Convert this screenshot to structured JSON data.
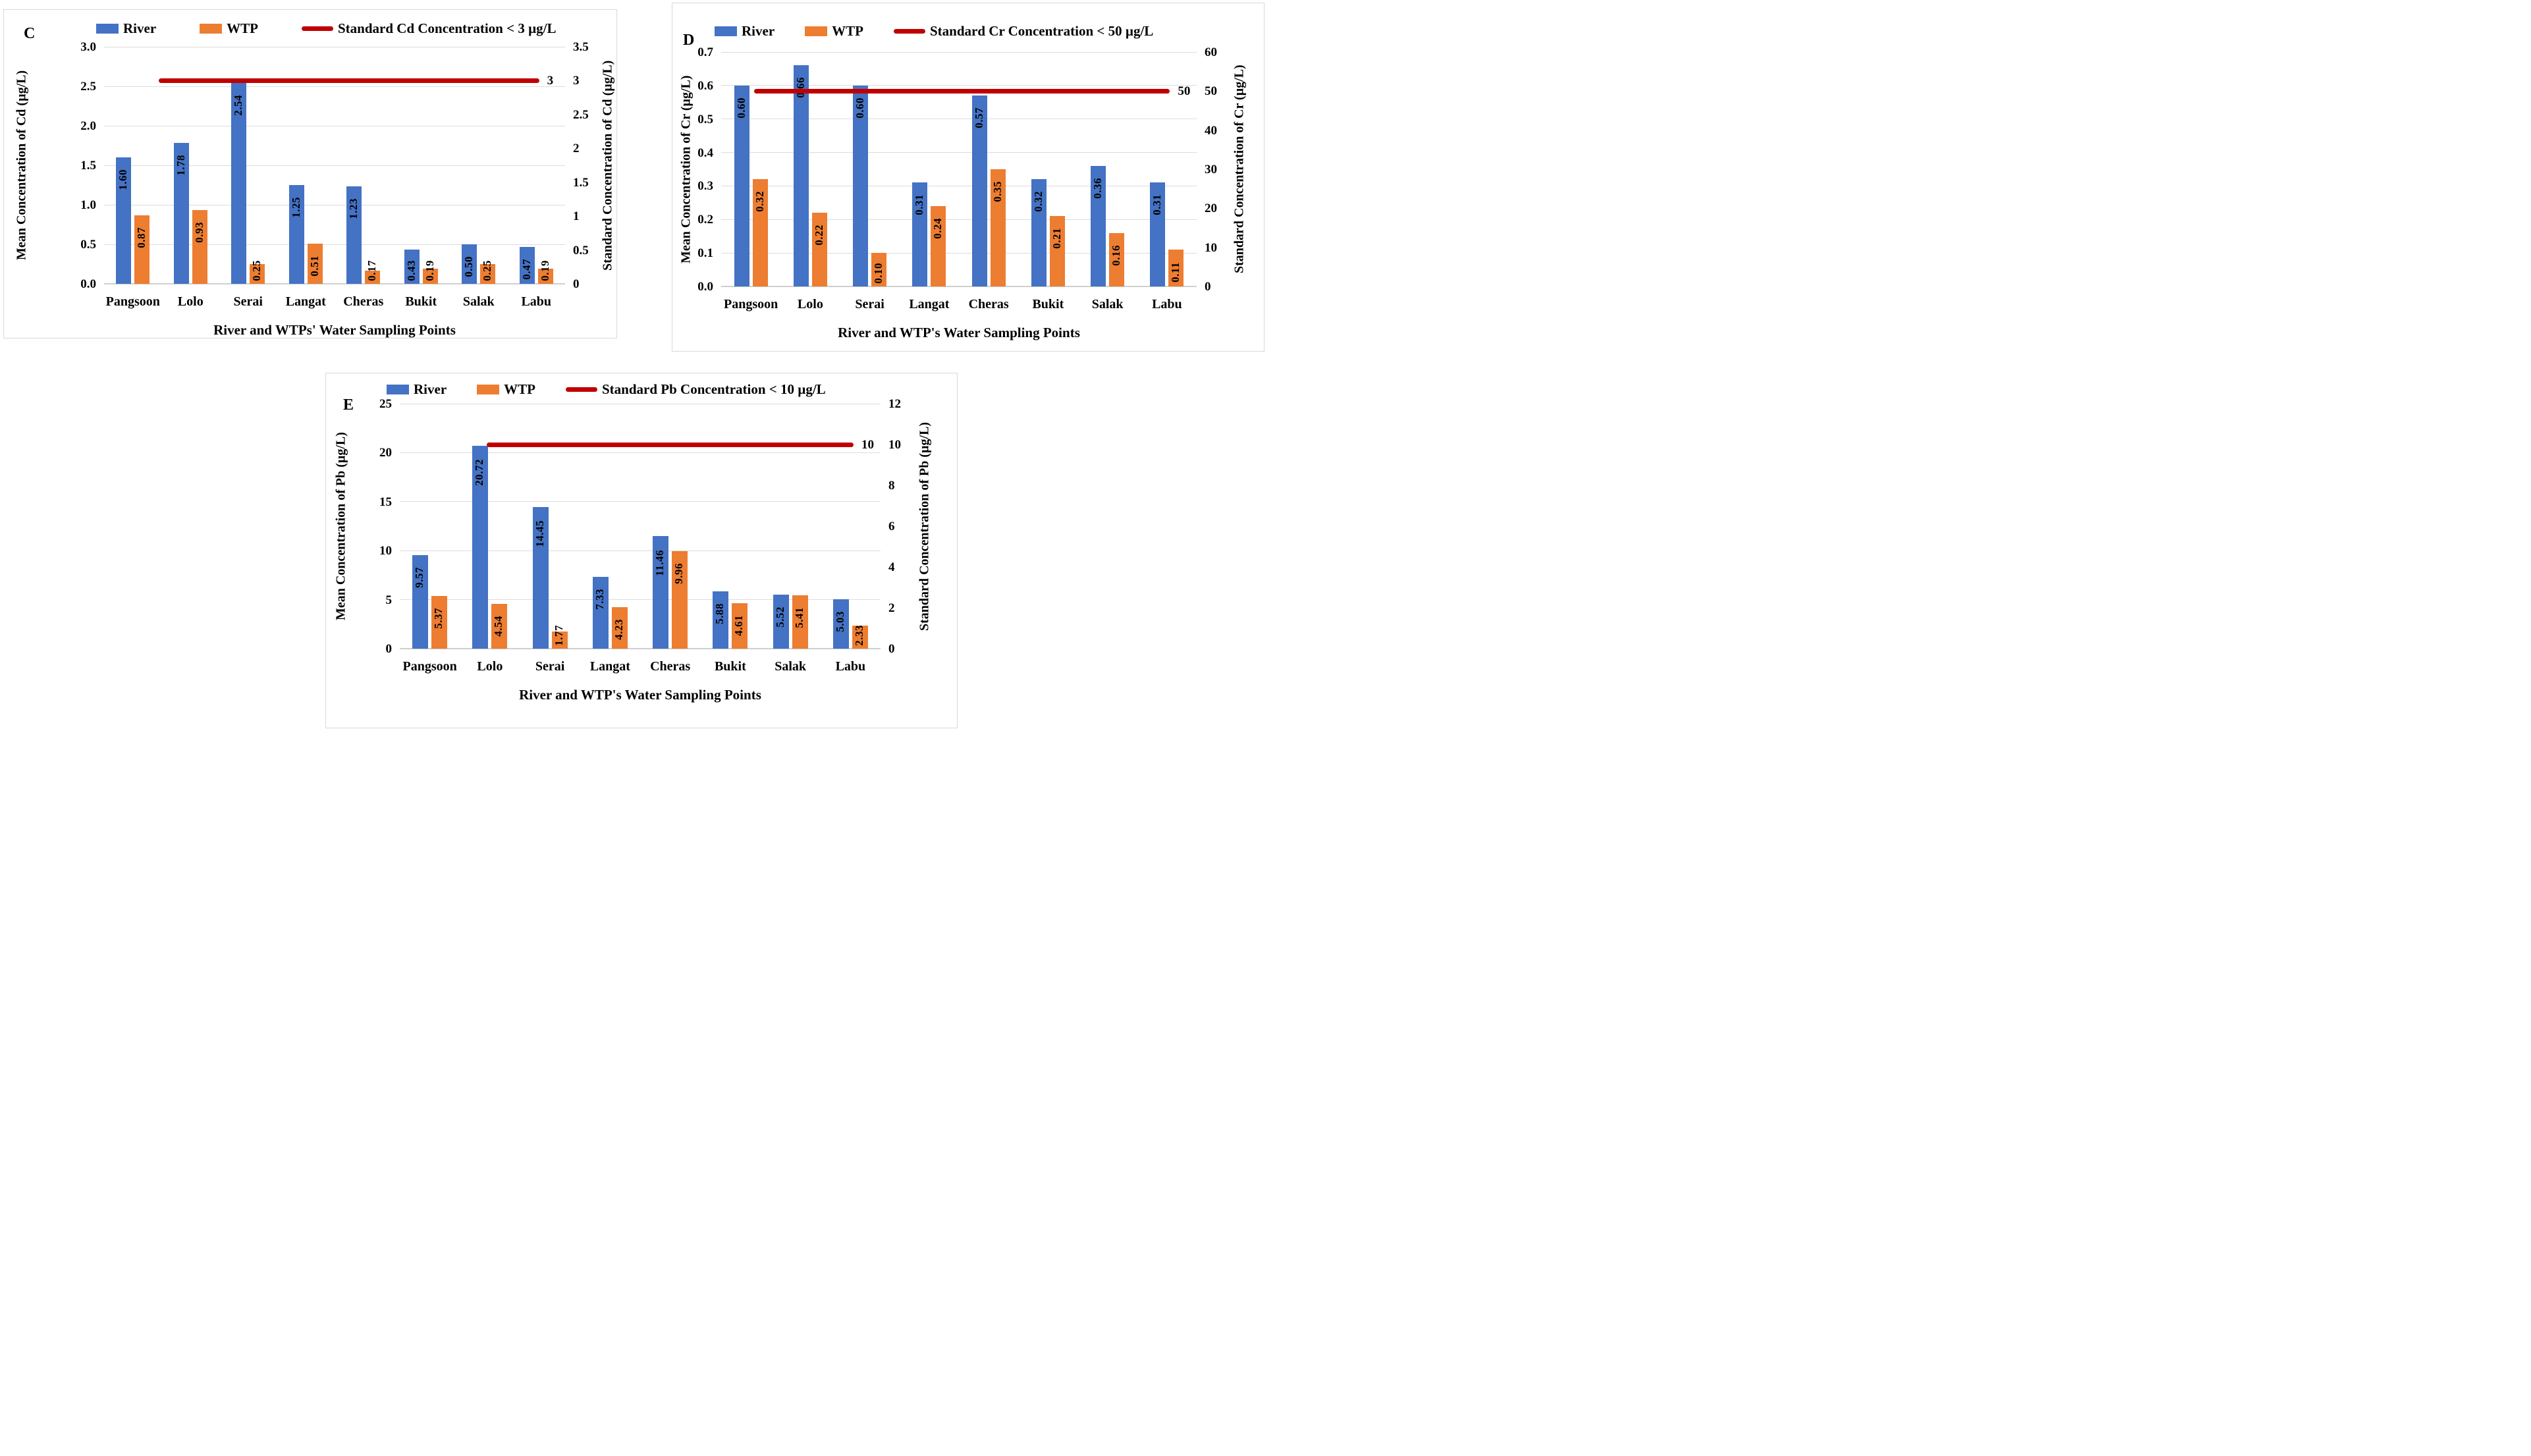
{
  "colors": {
    "river": "#4472C4",
    "wtp": "#ED7D31",
    "standard_line": "#C00000",
    "gridline": "#DCDCDC",
    "panel_border": "#D9D9D9",
    "text": "#000000"
  },
  "chart_data": [
    {
      "type": "bar",
      "panel": "C",
      "categories": [
        "Pangsoon",
        "Lolo",
        "Serai",
        "Langat",
        "Cheras",
        "Bukit",
        "Salak",
        "Labu"
      ],
      "series": [
        {
          "name": "River",
          "values": [
            1.6,
            1.78,
            2.54,
            1.25,
            1.23,
            0.43,
            0.5,
            0.47
          ]
        },
        {
          "name": "WTP",
          "values": [
            0.87,
            0.93,
            0.25,
            0.51,
            0.17,
            0.19,
            0.25,
            0.19
          ]
        }
      ],
      "left_axis": {
        "title": "Mean Concentration of Cd (µg/L)",
        "min": 0,
        "max": 3.0,
        "ticks": [
          "0.0",
          "0.5",
          "1.0",
          "1.5",
          "2.0",
          "2.5",
          "3.0"
        ]
      },
      "right_axis": {
        "title": "Standard Concentration of Cd (µg/L)",
        "min": 0,
        "max": 3.5,
        "ticks": [
          "0",
          "0.5",
          "1",
          "1.5",
          "2",
          "2.5",
          "3",
          "3.5"
        ]
      },
      "x_axis_title": "River and WTPs' Water Sampling Points",
      "standard_line": {
        "value": 3,
        "label": "3",
        "axis": "right",
        "legend_label": "Standard Cd Concentration < 3 µg/L"
      },
      "legend_position": "top",
      "grid": true
    },
    {
      "type": "bar",
      "panel": "D",
      "categories": [
        "Pangsoon",
        "Lolo",
        "Serai",
        "Langat",
        "Cheras",
        "Bukit",
        "Salak",
        "Labu"
      ],
      "series": [
        {
          "name": "River",
          "values": [
            0.6,
            0.66,
            0.6,
            0.31,
            0.57,
            0.32,
            0.36,
            0.31
          ]
        },
        {
          "name": "WTP",
          "values": [
            0.32,
            0.22,
            0.1,
            0.24,
            0.35,
            0.21,
            0.16,
            0.11
          ]
        }
      ],
      "left_axis": {
        "title": "Mean Concentration of Cr (µg/L)",
        "min": 0,
        "max": 0.7,
        "ticks": [
          "0.0",
          "0.1",
          "0.2",
          "0.3",
          "0.4",
          "0.5",
          "0.6",
          "0.7"
        ]
      },
      "right_axis": {
        "title": "Standard Concentration of Cr (µg/L)",
        "min": 0,
        "max": 60,
        "ticks": [
          "0",
          "10",
          "20",
          "30",
          "40",
          "50",
          "60"
        ]
      },
      "x_axis_title": "River and WTP's Water Sampling Points",
      "standard_line": {
        "value": 50,
        "label": "50",
        "axis": "right",
        "legend_label": "Standard Cr Concentration < 50 µg/L"
      },
      "legend_position": "top",
      "grid": true
    },
    {
      "type": "bar",
      "panel": "E",
      "categories": [
        "Pangsoon",
        "Lolo",
        "Serai",
        "Langat",
        "Cheras",
        "Bukit",
        "Salak",
        "Labu"
      ],
      "series": [
        {
          "name": "River",
          "values": [
            9.57,
            20.72,
            14.45,
            7.33,
            11.46,
            5.88,
            5.52,
            5.03
          ]
        },
        {
          "name": "WTP",
          "values": [
            5.37,
            4.54,
            1.77,
            4.23,
            9.96,
            4.61,
            5.41,
            2.33
          ]
        }
      ],
      "left_axis": {
        "title": "Mean Concentration of Pb (µg/L)",
        "min": 0,
        "max": 25,
        "ticks": [
          "0",
          "5",
          "10",
          "15",
          "20",
          "25"
        ]
      },
      "right_axis": {
        "title": "Standard Concentration of Pb (µg/L)",
        "min": 0,
        "max": 12,
        "ticks": [
          "0",
          "2",
          "4",
          "6",
          "8",
          "10",
          "12"
        ]
      },
      "x_axis_title": "River and WTP's Water Sampling Points",
      "standard_line": {
        "value": 10,
        "label": "10",
        "axis": "right",
        "legend_label": "Standard Pb Concentration < 10 µg/L"
      },
      "legend_position": "top",
      "grid": true
    }
  ]
}
